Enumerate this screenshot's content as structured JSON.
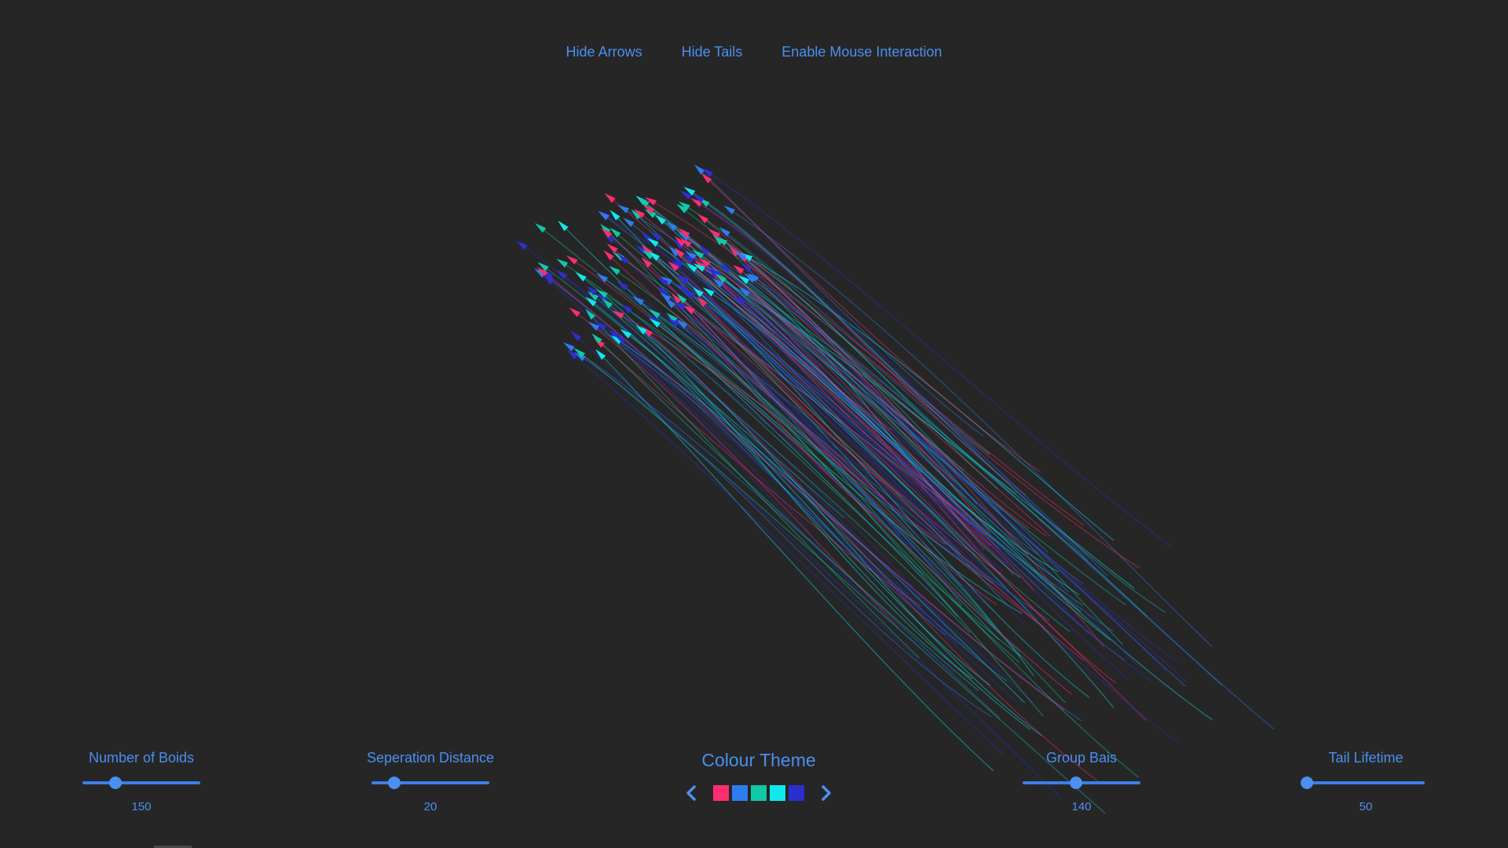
{
  "toggles": {
    "arrows": "Hide Arrows",
    "tails": "Hide Tails",
    "mouse": "Enable Mouse Interaction"
  },
  "sliders": {
    "boids": {
      "label": "Number of Boids",
      "value": "150",
      "fraction": 0.28
    },
    "separation": {
      "label": "Seperation Distance",
      "value": "20",
      "fraction": 0.19
    },
    "group": {
      "label": "Group Bais",
      "value": "140",
      "fraction": 0.45
    },
    "tail": {
      "label": "Tail Lifetime",
      "value": "50",
      "fraction": 0.0
    }
  },
  "theme": {
    "title": "Colour Theme",
    "colors": [
      "#ff2d6f",
      "#2f7cf0",
      "#10c9a5",
      "#11e8ee",
      "#2c2fd0"
    ]
  },
  "icons": {
    "prev": "chevron-left-icon",
    "next": "chevron-right-icon"
  }
}
